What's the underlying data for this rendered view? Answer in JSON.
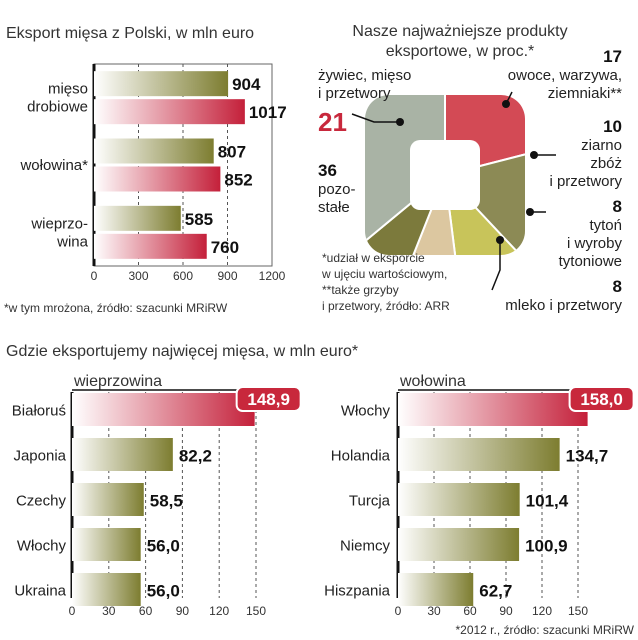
{
  "chart_data": [
    {
      "type": "bar",
      "title": "Eksport mięsa z Polski, w mln euro",
      "categories": [
        "mięso drobiowe",
        "wołowina*",
        "wieprzowina"
      ],
      "category_lines": [
        [
          "mięso",
          "drobiowe"
        ],
        [
          "wołowina*"
        ],
        [
          "wieprzo-",
          "wina"
        ]
      ],
      "series": [
        {
          "values": [
            904,
            807,
            585
          ],
          "color": "#8a8a3c"
        },
        {
          "values": [
            1017,
            852,
            760
          ],
          "color": "#c8283c"
        }
      ],
      "value_labels": [
        [
          "904",
          "807",
          "585"
        ],
        [
          "1017",
          "852",
          "760"
        ]
      ],
      "xlim": [
        0,
        1200
      ],
      "ticks": [
        "0",
        "300",
        "600",
        "900",
        "1200"
      ],
      "footnote": "*w tym mrożona, źródło: szacunki MRiRW"
    },
    {
      "type": "pie",
      "title_lines": [
        "Nasze najważniejsze produkty",
        "eksportowe, w proc.*"
      ],
      "slices": [
        {
          "label_lines": [
            "żywiec, mięso",
            "i przetwory"
          ],
          "value": 21,
          "value_label": "21",
          "color": "#d34a55"
        },
        {
          "label_lines": [
            "owoce, warzywa,",
            "ziemniaki**"
          ],
          "value": 17,
          "value_label": "17",
          "color": "#8c8a55"
        },
        {
          "label_lines": [
            "ziarno",
            "zbóż",
            "i przetwory"
          ],
          "value": 10,
          "value_label": "10",
          "color": "#c8c45a"
        },
        {
          "label_lines": [
            "tytoń",
            "i wyroby",
            "tytoniowe"
          ],
          "value": 8,
          "value_label": "8",
          "color": "#dcc7a0"
        },
        {
          "label_lines": [
            "mleko i przetwory"
          ],
          "value": 8,
          "value_label": "8",
          "color": "#7c7a3c"
        },
        {
          "label_lines": [
            "pozo-",
            "stałe"
          ],
          "value": 36,
          "value_label": "36",
          "color": "#a9b3a5"
        }
      ],
      "footnote_lines": [
        "*udział w eksporcie",
        "w ujęciu wartościowym,",
        "**także grzyby",
        "i przetwory, źródło: ARR"
      ]
    },
    {
      "type": "bar",
      "title": "Gdzie eksportujemy najwięcej mięsa, w mln euro*",
      "subtitle": "wieprzowina",
      "categories": [
        "Białoruś",
        "Japonia",
        "Czechy",
        "Włochy",
        "Ukraina"
      ],
      "values": [
        148.9,
        82.2,
        58.5,
        56.0,
        56.0
      ],
      "value_labels": [
        "148,9",
        "82,2",
        "58,5",
        "56,0",
        "56,0"
      ],
      "xlim": [
        0,
        150
      ],
      "ticks": [
        "0",
        "30",
        "60",
        "90",
        "120",
        "150"
      ]
    },
    {
      "type": "bar",
      "subtitle": "wołowina",
      "categories": [
        "Włochy",
        "Holandia",
        "Turcja",
        "Niemcy",
        "Hiszpania"
      ],
      "values": [
        158.0,
        134.7,
        101.4,
        100.9,
        62.7
      ],
      "value_labels": [
        "158,0",
        "134,7",
        "101,4",
        "100,9",
        "62,7"
      ],
      "xlim": [
        0,
        150
      ],
      "ticks": [
        "0",
        "30",
        "60",
        "90",
        "120",
        "150"
      ],
      "footnote": "*2012 r., źródło: szacunki MRiRW"
    }
  ],
  "colors": {
    "olive": "#8a8a3c",
    "red": "#c8283c",
    "frame": "#555555"
  }
}
